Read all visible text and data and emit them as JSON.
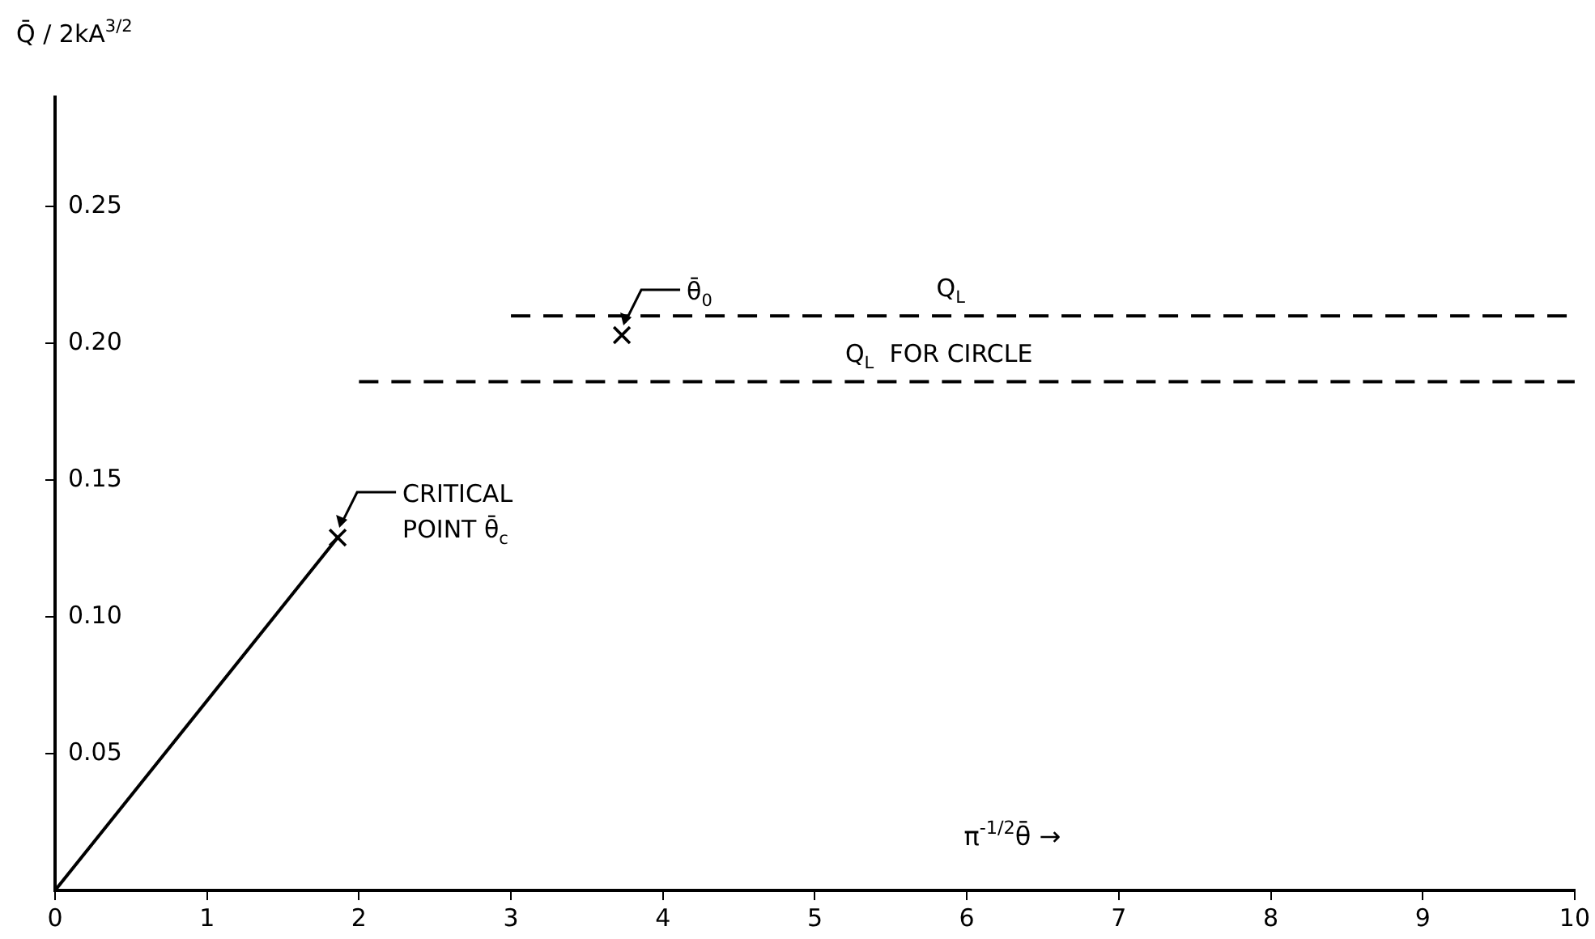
{
  "chart_data": {
    "type": "line",
    "ylabel": "Q̄ / 2kA$^{3/2}$",
    "xlabel": "π$^{-1/2}$θ̄ →",
    "xlim": [
      0,
      10
    ],
    "xticks": [
      0,
      1,
      2,
      3,
      4,
      5,
      6,
      7,
      8,
      9,
      10
    ],
    "ylim": [
      0,
      0.29
    ],
    "yticks": [
      0.05,
      {
        "value": 0.1,
        "label": "0.10"
      },
      0.15,
      {
        "value": 0.2,
        "label": "0.20"
      },
      0.25
    ],
    "grid": false,
    "legend": false,
    "series": [
      {
        "x": [
          0,
          1.86
        ],
        "values": [
          0,
          0.129
        ],
        "color": "#000000",
        "line_style": "solid",
        "marker": "none"
      },
      {
        "name": "Q$_{L}$",
        "x": [
          3,
          10
        ],
        "values": [
          0.21,
          0.21
        ],
        "color": "#000000",
        "line_style": "dashed",
        "marker": "none"
      },
      {
        "name": "Q$_{L}$  FOR CIRCLE",
        "x": [
          2,
          10
        ],
        "values": [
          0.186,
          0.186
        ],
        "color": "#000000",
        "line_style": "dashed",
        "marker": "none"
      },
      {
        "type": "scatter",
        "x": [
          1.86,
          3.73
        ],
        "values": [
          0.129,
          0.203
        ],
        "color": "#000000",
        "marker": "cross"
      }
    ],
    "annotations": [
      {
        "text": "CRITICAL\nPOINT θ̄$_{c}$",
        "x": 1.86,
        "y": 0.129
      },
      {
        "text": "θ̄$_{0}$",
        "x": 3.73,
        "y": 0.203
      }
    ]
  }
}
